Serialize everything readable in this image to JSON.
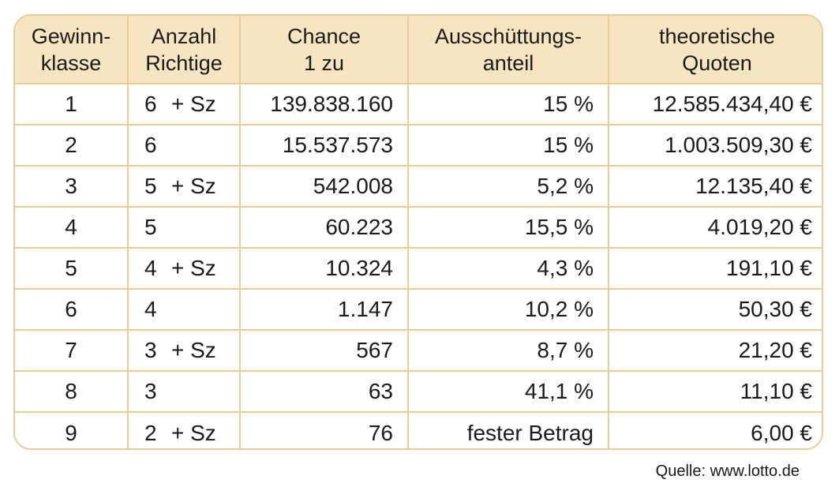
{
  "table": {
    "headers": [
      {
        "line1": "Gewinn-",
        "line2": "klasse"
      },
      {
        "line1": "Anzahl",
        "line2": "Richtige"
      },
      {
        "line1": "Chance",
        "line2": "1 zu"
      },
      {
        "line1": "Ausschüttungs-",
        "line2": "anteil"
      },
      {
        "line1": "theoretische",
        "line2": "Quoten"
      }
    ],
    "rows": [
      {
        "klasse": "1",
        "richtige": "6",
        "zusatz": "+ Sz",
        "chance": "139.838.160",
        "anteil": "15 %",
        "quote": "12.585.434,40 €"
      },
      {
        "klasse": "2",
        "richtige": "6",
        "zusatz": "",
        "chance": "15.537.573",
        "anteil": "15 %",
        "quote": "1.003.509,30 €"
      },
      {
        "klasse": "3",
        "richtige": "5",
        "zusatz": "+ Sz",
        "chance": "542.008",
        "anteil": "5,2 %",
        "quote": "12.135,40 €"
      },
      {
        "klasse": "4",
        "richtige": "5",
        "zusatz": "",
        "chance": "60.223",
        "anteil": "15,5 %",
        "quote": "4.019,20 €"
      },
      {
        "klasse": "5",
        "richtige": "4",
        "zusatz": "+ Sz",
        "chance": "10.324",
        "anteil": "4,3 %",
        "quote": "191,10 €"
      },
      {
        "klasse": "6",
        "richtige": "4",
        "zusatz": "",
        "chance": "1.147",
        "anteil": "10,2 %",
        "quote": "50,30 €"
      },
      {
        "klasse": "7",
        "richtige": "3",
        "zusatz": "+ Sz",
        "chance": "567",
        "anteil": "8,7 %",
        "quote": "21,20 €"
      },
      {
        "klasse": "8",
        "richtige": "3",
        "zusatz": "",
        "chance": "63",
        "anteil": "41,1 %",
        "quote": "11,10 €"
      },
      {
        "klasse": "9",
        "richtige": "2",
        "zusatz": "+ Sz",
        "chance": "76",
        "anteil": "fester Betrag",
        "quote": "6,00 €"
      }
    ]
  },
  "source": "Quelle: www.lotto.de",
  "colors": {
    "header_bg": "#f7e5c2",
    "border": "#e6cd98"
  }
}
